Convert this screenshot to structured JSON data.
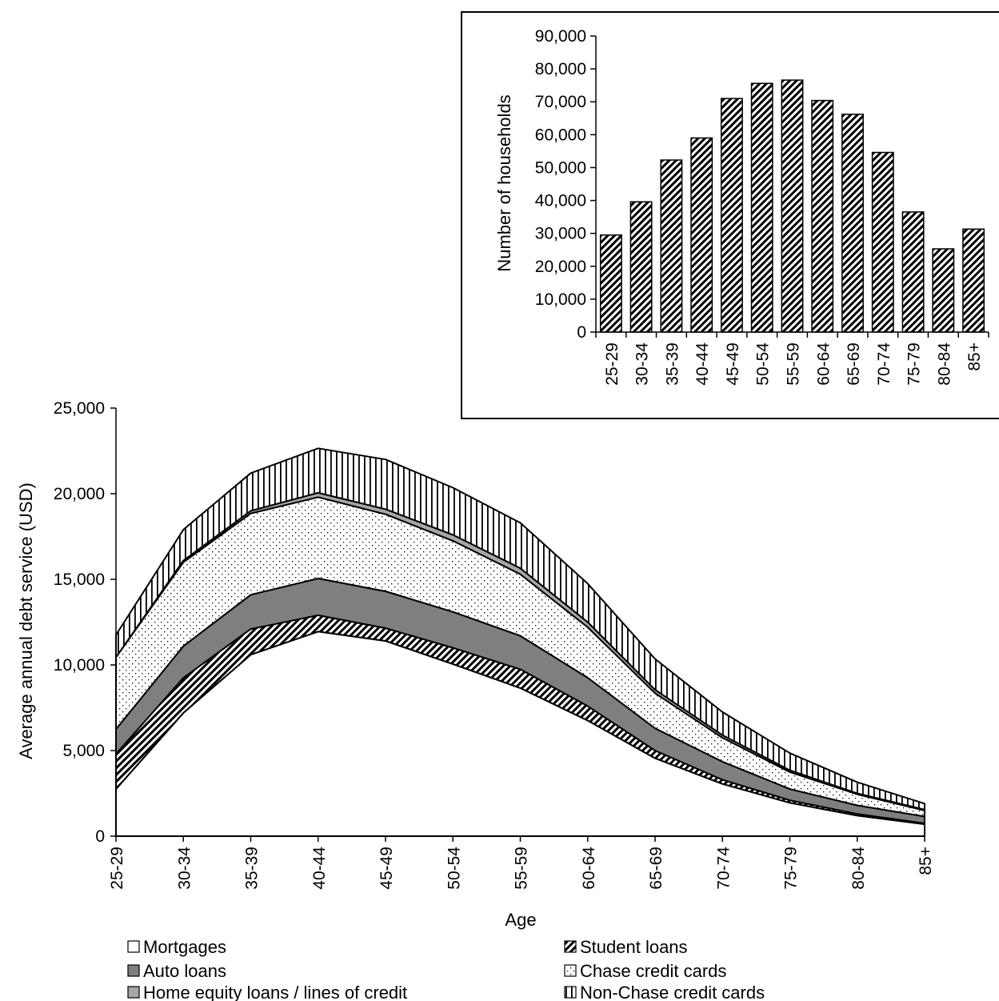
{
  "chart_data": [
    {
      "type": "area",
      "stacked": true,
      "xlabel": "Age",
      "ylabel": "Average annual debt service (USD)",
      "ylim": [
        0,
        25000
      ],
      "yticks": [
        "0",
        "5,000",
        "10,000",
        "15,000",
        "20,000",
        "25,000"
      ],
      "categories": [
        "25-29",
        "30-34",
        "35-39",
        "40-44",
        "45-49",
        "50-54",
        "55-59",
        "60-64",
        "65-69",
        "70-74",
        "75-79",
        "80-84",
        "85+"
      ],
      "legend_position": "bottom",
      "series": [
        {
          "name": "Mortgages",
          "pattern": "blank",
          "values": [
            2750,
            7200,
            10600,
            11950,
            11400,
            10050,
            8650,
            6750,
            4550,
            3050,
            1950,
            1200,
            700
          ]
        },
        {
          "name": "Student loans",
          "pattern": "diagonal-hatch",
          "values": [
            2050,
            2050,
            1500,
            950,
            750,
            950,
            1100,
            850,
            450,
            250,
            150,
            100,
            50
          ]
        },
        {
          "name": "Auto loans",
          "pattern": "solid-dark-gray",
          "values": [
            1450,
            1850,
            2000,
            2150,
            2150,
            2100,
            1950,
            1650,
            1300,
            1050,
            650,
            500,
            400
          ]
        },
        {
          "name": "Chase credit cards",
          "pattern": "dotted",
          "values": [
            4200,
            4900,
            4750,
            4750,
            4500,
            4150,
            3600,
            2950,
            2050,
            1400,
            1000,
            650,
            350
          ]
        },
        {
          "name": "Home equity loans / lines of credit",
          "pattern": "solid-light-gray",
          "values": [
            0,
            100,
            150,
            250,
            300,
            350,
            350,
            300,
            200,
            150,
            100,
            50,
            50
          ]
        },
        {
          "name": "Non-Chase credit cards",
          "pattern": "vertical-lines",
          "values": [
            1300,
            1800,
            2200,
            2600,
            2900,
            2750,
            2650,
            2250,
            1800,
            1350,
            1000,
            650,
            350
          ]
        }
      ]
    },
    {
      "type": "bar",
      "pattern": "diagonal-hatch",
      "ylabel": "Number of households",
      "xlabel": "",
      "ylim": [
        0,
        90000
      ],
      "yticks": [
        "0",
        "10,000",
        "20,000",
        "30,000",
        "40,000",
        "50,000",
        "60,000",
        "70,000",
        "80,000",
        "90,000"
      ],
      "categories": [
        "25-29",
        "30-34",
        "35-39",
        "40-44",
        "45-49",
        "50-54",
        "55-59",
        "60-64",
        "65-69",
        "70-74",
        "75-79",
        "80-84",
        "85+"
      ],
      "values": [
        29500,
        39600,
        52300,
        59000,
        71000,
        75600,
        76600,
        70400,
        66200,
        54600,
        36500,
        25300,
        31300
      ]
    }
  ]
}
